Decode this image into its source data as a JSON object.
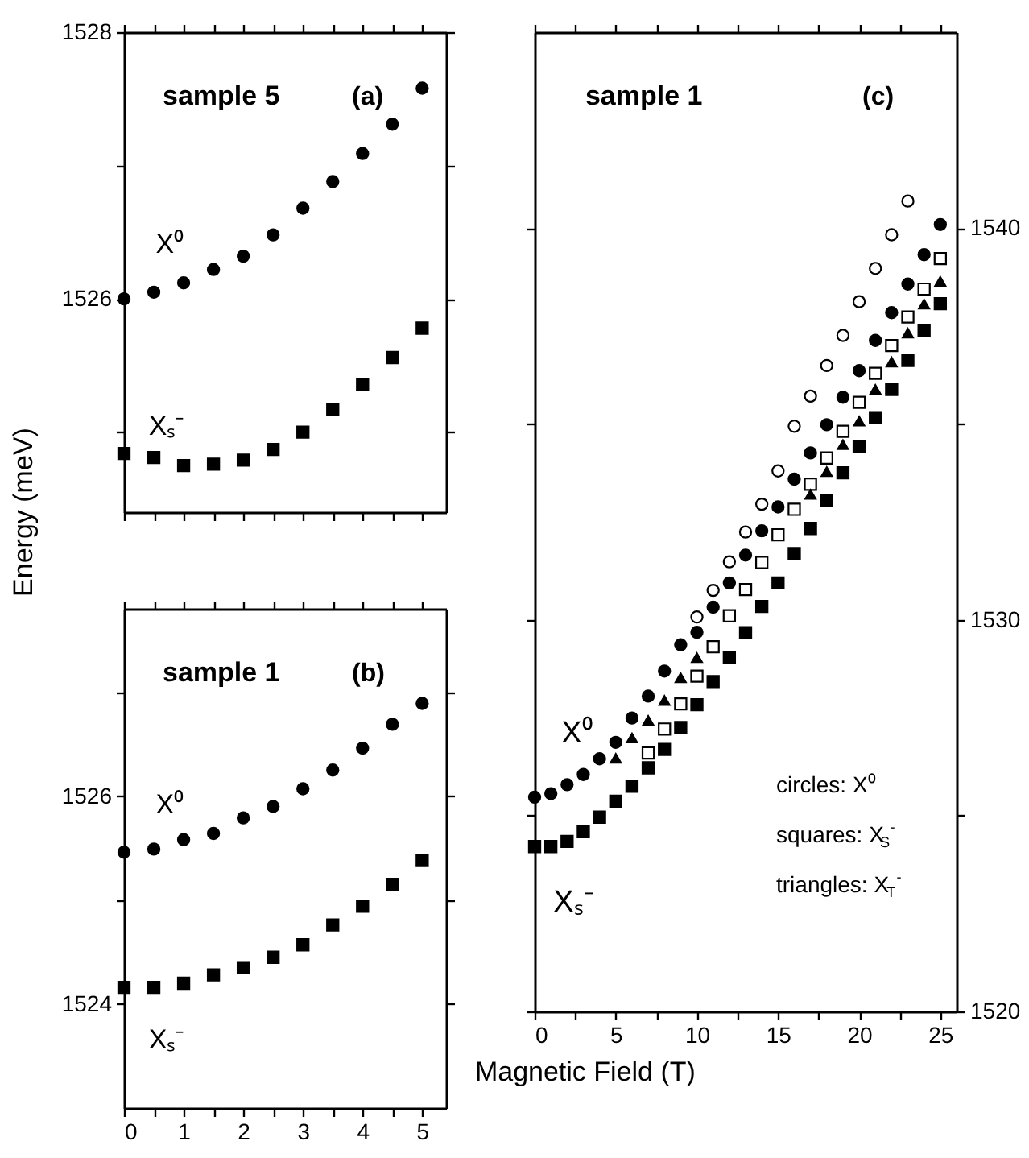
{
  "chart_data": [
    {
      "type": "scatter",
      "title": "sample 5",
      "ylabel": "Energy (meV)",
      "xlim": [
        0,
        5.4
      ],
      "ylim": [
        1524.4,
        1528
      ],
      "xticks": [
        0,
        {
          "value": 0.5,
          "label": null
        },
        1,
        {
          "value": 1.5,
          "label": null
        },
        2,
        {
          "value": 2.5,
          "label": null
        },
        3,
        {
          "value": 3.5,
          "label": null
        },
        4,
        {
          "value": 4.5,
          "label": null
        },
        5
      ],
      "yticks": [
        {
          "value": 1525,
          "label": null
        },
        1526,
        {
          "value": 1527,
          "label": null
        },
        1528
      ],
      "tick_labels": "y",
      "x": [
        0,
        0.5,
        1,
        1.5,
        2,
        2.5,
        3,
        3.5,
        4,
        4.5,
        5
      ],
      "series": [
        {
          "color": "#000000",
          "marker": "circle",
          "values": [
            1526.0,
            1526.05,
            1526.12,
            1526.22,
            1526.32,
            1526.48,
            1526.68,
            1526.88,
            1527.09,
            1527.31,
            1527.58
          ]
        },
        {
          "color": "#000000",
          "marker": "square",
          "values": [
            1524.84,
            1524.81,
            1524.75,
            1524.76,
            1524.79,
            1524.87,
            1525.0,
            1525.17,
            1525.36,
            1525.56,
            1525.78
          ]
        }
      ],
      "annotations": [
        "(a)",
        "X⁰",
        "Xₛ⁻"
      ]
    },
    {
      "type": "scatter",
      "title": "sample 1",
      "xlim": [
        0,
        5.4
      ],
      "ylim": [
        1523,
        1527.8
      ],
      "xticks": [
        0,
        {
          "value": 0.5,
          "label": null
        },
        1,
        {
          "value": 1.5,
          "label": null
        },
        2,
        {
          "value": 2.5,
          "label": null
        },
        3,
        {
          "value": 3.5,
          "label": null
        },
        4,
        {
          "value": 4.5,
          "label": null
        },
        5
      ],
      "yticks": [
        1524,
        {
          "value": 1525,
          "label": null
        },
        1526,
        {
          "value": 1527,
          "label": null
        }
      ],
      "x": [
        0,
        0.5,
        1,
        1.5,
        2,
        2.5,
        3,
        3.5,
        4,
        4.5,
        5
      ],
      "series": [
        {
          "color": "#000000",
          "marker": "circle",
          "values": [
            1525.46,
            1525.49,
            1525.58,
            1525.64,
            1525.79,
            1525.9,
            1526.07,
            1526.25,
            1526.46,
            1526.69,
            1526.89
          ]
        },
        {
          "color": "#000000",
          "marker": "square",
          "values": [
            1524.16,
            1524.16,
            1524.2,
            1524.28,
            1524.35,
            1524.45,
            1524.57,
            1524.76,
            1524.94,
            1525.15,
            1525.38
          ]
        }
      ],
      "annotations": [
        "(b)",
        "X⁰",
        "Xₛ⁻"
      ]
    },
    {
      "type": "scatter",
      "title": "sample 1",
      "xlabel": "Magnetic Field (T)",
      "xlim": [
        0,
        26
      ],
      "ylim": [
        1520,
        1545
      ],
      "xticks": [
        0,
        {
          "value": 2.5,
          "label": null
        },
        5,
        {
          "value": 7.5,
          "label": null
        },
        10,
        {
          "value": 12.5,
          "label": null
        },
        15,
        {
          "value": 17.5,
          "label": null
        },
        20,
        {
          "value": 22.5,
          "label": null
        },
        25
      ],
      "yticks": [
        1520,
        {
          "value": 1525,
          "label": null
        },
        1530,
        {
          "value": 1535,
          "label": null
        },
        1540
      ],
      "series": [
        {
          "color": "#000000",
          "marker": "circle",
          "x": [
            0,
            1,
            2,
            3,
            4,
            5,
            6,
            7,
            8,
            9,
            10,
            11,
            12,
            13,
            14,
            15,
            16,
            17,
            18,
            19,
            20,
            21,
            22,
            23,
            24,
            25
          ],
          "values": [
            1525.47,
            1525.56,
            1525.79,
            1526.05,
            1526.45,
            1526.87,
            1527.49,
            1528.05,
            1528.69,
            1529.36,
            1529.68,
            1530.32,
            1530.94,
            1531.65,
            1532.27,
            1532.88,
            1533.59,
            1534.26,
            1534.98,
            1535.68,
            1536.36,
            1537.13,
            1537.84,
            1538.57,
            1539.32,
            1540.09
          ]
        },
        {
          "color": "#ffffff",
          "marker": "circle",
          "x": [
            10,
            11,
            12,
            13,
            14,
            15,
            16,
            17,
            18,
            19,
            20,
            21,
            22,
            23
          ],
          "values": [
            1530.07,
            1530.75,
            1531.48,
            1532.24,
            1532.95,
            1533.8,
            1534.94,
            1535.71,
            1536.49,
            1537.26,
            1538.12,
            1538.97,
            1539.83,
            1540.69
          ]
        },
        {
          "color": "#000000",
          "marker": "square",
          "x": [
            0,
            1,
            2,
            3,
            4,
            5,
            6,
            7,
            8,
            9,
            10,
            11,
            12,
            13,
            14,
            15,
            16,
            17,
            18,
            19,
            20,
            21,
            22,
            23,
            24,
            25
          ],
          "values": [
            1524.21,
            1524.21,
            1524.34,
            1524.59,
            1524.96,
            1525.37,
            1525.75,
            1526.22,
            1526.69,
            1527.25,
            1527.83,
            1528.42,
            1529.03,
            1529.67,
            1530.34,
            1530.94,
            1531.69,
            1532.33,
            1533.05,
            1533.75,
            1534.43,
            1535.16,
            1535.88,
            1536.62,
            1537.39,
            1538.07
          ]
        },
        {
          "color": "#ffffff",
          "marker": "square",
          "x": [
            7,
            8,
            9,
            10,
            11,
            12,
            13,
            14,
            15,
            16,
            17,
            18,
            19,
            20,
            21,
            22,
            23,
            24,
            25
          ],
          "values": [
            1526.6,
            1527.21,
            1527.85,
            1528.56,
            1529.31,
            1530.1,
            1530.77,
            1531.46,
            1532.17,
            1532.82,
            1533.46,
            1534.13,
            1534.81,
            1535.55,
            1536.29,
            1537.0,
            1537.73,
            1538.44,
            1539.22
          ]
        },
        {
          "color": "#000000",
          "marker": "triangle",
          "x": [
            5,
            6,
            7,
            8,
            9,
            10,
            17,
            18,
            19,
            20,
            21,
            22,
            23,
            24,
            25
          ],
          "values": [
            1526.46,
            1526.98,
            1527.43,
            1527.94,
            1528.52,
            1529.03,
            1533.2,
            1533.78,
            1534.47,
            1535.07,
            1535.88,
            1536.58,
            1537.32,
            1538.06,
            1538.64
          ]
        }
      ],
      "annotations": [
        "(c)",
        "circles: X⁰",
        "squares: X$_{S}$$^{-}$",
        "triangles: X$_{T}$$^{-}$",
        "X⁰",
        "Xₛ⁻"
      ]
    }
  ]
}
